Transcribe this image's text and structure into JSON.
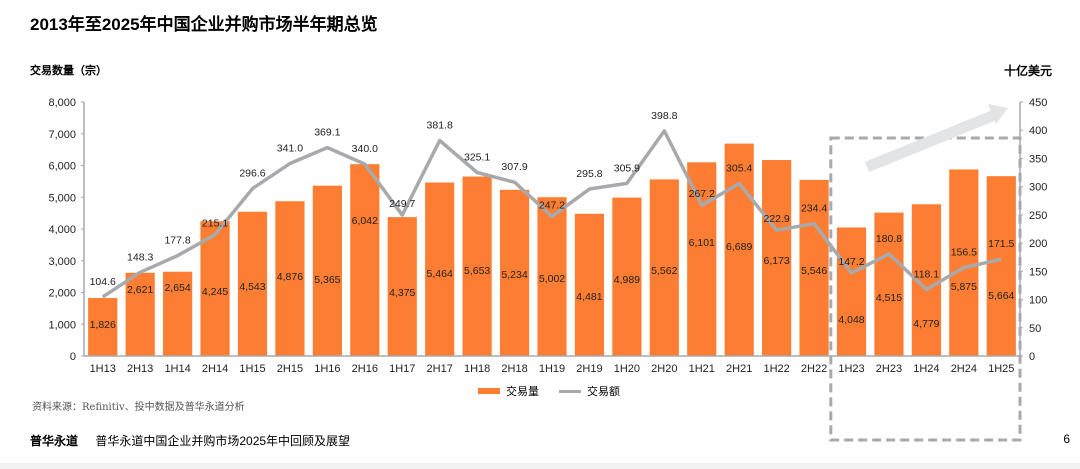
{
  "title": "2013年至2025年中国企业并购市场半年期总览",
  "chart_data": {
    "type": "bar",
    "title": "2013年至2025年中国企业并购市场半年期总览",
    "ylabel": "交易数量（宗）",
    "y2label": "十亿美元",
    "ylim": [
      0,
      8000
    ],
    "y2lim": [
      0,
      450
    ],
    "yticks": [
      "0",
      "1,000",
      "2,000",
      "3,000",
      "4,000",
      "5,000",
      "6,000",
      "7,000",
      "8,000"
    ],
    "y2ticks": [
      "0",
      "50",
      "100",
      "150",
      "200",
      "250",
      "300",
      "350",
      "400",
      "450"
    ],
    "categories": [
      "1H13",
      "2H13",
      "1H14",
      "2H14",
      "1H15",
      "2H15",
      "1H16",
      "2H16",
      "1H17",
      "2H17",
      "1H18",
      "2H18",
      "1H19",
      "2H19",
      "1H20",
      "2H20",
      "1H21",
      "2H21",
      "1H22",
      "2H22",
      "1H23",
      "2H23",
      "1H24",
      "2H24",
      "1H25"
    ],
    "series": [
      {
        "name": "交易量",
        "type": "bar",
        "axis": "left",
        "color": "#FD7E33",
        "values": [
          1826,
          2621,
          2654,
          4245,
          4543,
          4876,
          5365,
          6042,
          4375,
          5464,
          5653,
          5234,
          5002,
          4481,
          4989,
          5562,
          6101,
          6689,
          6173,
          5546,
          4048,
          4515,
          4779,
          5875,
          5664
        ],
        "labels": [
          "1,826",
          "2,621",
          "2,654",
          "4,245",
          "4,543",
          "4,876",
          "5,365",
          "6,042",
          "4,375",
          "5,464",
          "5,653",
          "5,234",
          "5,002",
          "4,481",
          "4,989",
          "5,562",
          "6,101",
          "6,689",
          "6,173",
          "5,546",
          "4,048",
          "4,515",
          "4,779",
          "5,875",
          "5,664"
        ]
      },
      {
        "name": "交易额",
        "type": "line",
        "axis": "right",
        "color": "#A7A9AD",
        "values": [
          104.6,
          148.3,
          177.8,
          215.1,
          296.6,
          341.0,
          369.1,
          340.0,
          249.7,
          381.8,
          325.1,
          307.9,
          247.2,
          295.8,
          305.9,
          398.8,
          267.2,
          305.4,
          222.9,
          234.4,
          147.2,
          180.8,
          118.1,
          156.5,
          171.5
        ],
        "labels": [
          "104.6",
          "148.3",
          "177.8",
          "215.1",
          "296.6",
          "341.0",
          "369.1",
          "340.0",
          "249.7",
          "381.8",
          "325.1",
          "307.9",
          "247.2",
          "295.8",
          "305.9",
          "398.8",
          "267.2",
          "305.4",
          "222.9",
          "234.4",
          "147.2",
          "180.8",
          "118.1",
          "156.5",
          "171.5"
        ]
      }
    ],
    "legend": [
      "交易量",
      "交易额"
    ],
    "legend_position": "bottom",
    "highlight": {
      "from": "1H23",
      "to": "1H25",
      "style": "dashed-box",
      "arrow": "up-right"
    }
  },
  "source": "资料来源：Refinitiv、投中数据及普华永道分析",
  "footer": {
    "brand": "普华永道",
    "text": "普华永道中国企业并购市场2025年中回顾及展望",
    "page": "6"
  }
}
